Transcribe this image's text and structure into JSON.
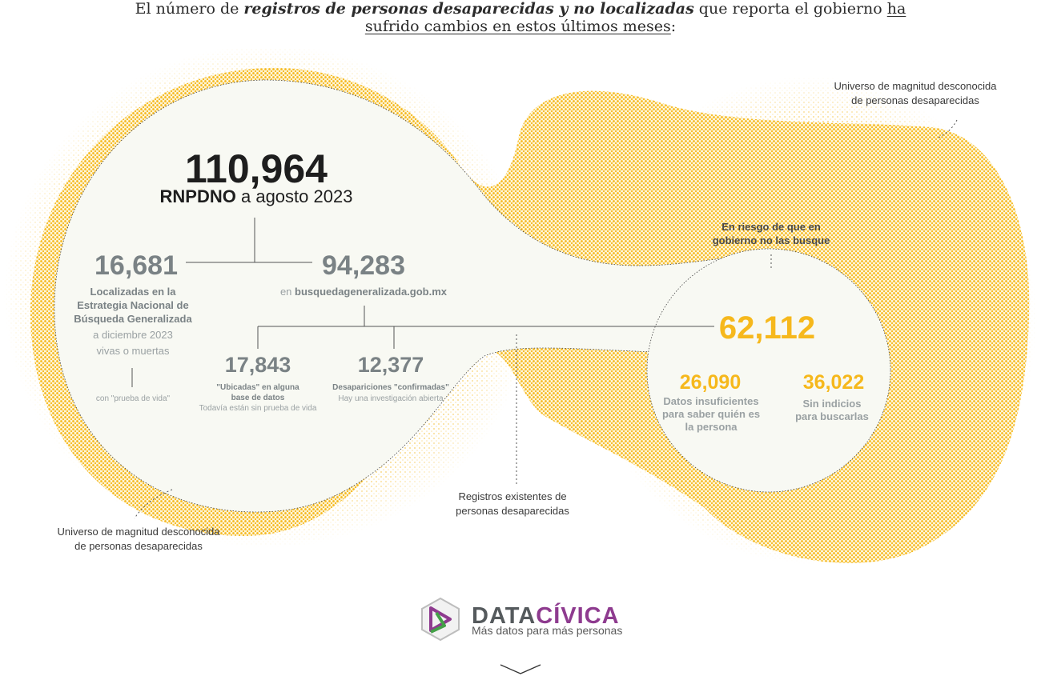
{
  "headline": {
    "part1": "El número de ",
    "emphasis": "registros de personas desaparecidas y no localizadas",
    "part2": " que reporta el gobierno ",
    "underline": "ha sufrido cambios en estos últimos meses",
    "end": ":"
  },
  "colors": {
    "yellow": "#f6b81c",
    "grey_text": "#7a8285",
    "circle_fill": "#f8f9f3",
    "logo_purple": "#8e3b8f",
    "logo_grey": "#555a5d",
    "logo_green": "#43a047"
  },
  "total": {
    "value": "110,964",
    "source": "RNPDNO",
    "date": " a agosto 2023"
  },
  "localizadas": {
    "value": "16,681",
    "label_lines": [
      "Localizadas en la",
      "Estrategia Nacional de",
      "Búsqueda Generalizada"
    ],
    "date": "a diciembre 2023",
    "note": "vivas o muertas",
    "footnote": "con \"prueba de vida\""
  },
  "busqueda": {
    "value": "94,283",
    "prefix": "en ",
    "site": "busquedageneralizada.gob.mx"
  },
  "ubicadas": {
    "value": "17,843",
    "label_lines": [
      "\"Ubicadas\"  en alguna",
      "base de datos"
    ],
    "note": "Todavía están sin prueba de vida"
  },
  "confirmadas": {
    "value": "12,377",
    "label": "Desapariciones \"confirmadas\"",
    "note": "Hay una investigación abierta"
  },
  "riesgo": {
    "label_lines": [
      "En riesgo de que en",
      "gobierno no las busque"
    ],
    "value": "62,112",
    "insuficientes": {
      "value": "26,090",
      "label_lines": [
        "Datos insuficientes",
        "para saber quién es",
        "la persona"
      ]
    },
    "sin_indicios": {
      "value": "36,022",
      "label_lines": [
        "Sin indicios",
        "para buscarlas"
      ]
    }
  },
  "annotations": {
    "universo_top": [
      "Universo de magnitud desconocida",
      "de personas desaparecidas"
    ],
    "universo_bottom": [
      "Universo de magnitud desconocida",
      "de personas desaparecidas"
    ],
    "registros": [
      "Registros existentes de",
      "personas desaparecidas"
    ]
  },
  "logo": {
    "name_part1": "DATA",
    "name_part2": "CÍVICA",
    "tagline": "Más datos para más personas",
    "icon": "datacivica-hexagon-logo-icon"
  },
  "icons": {
    "scroll": "chevron-down-icon"
  }
}
